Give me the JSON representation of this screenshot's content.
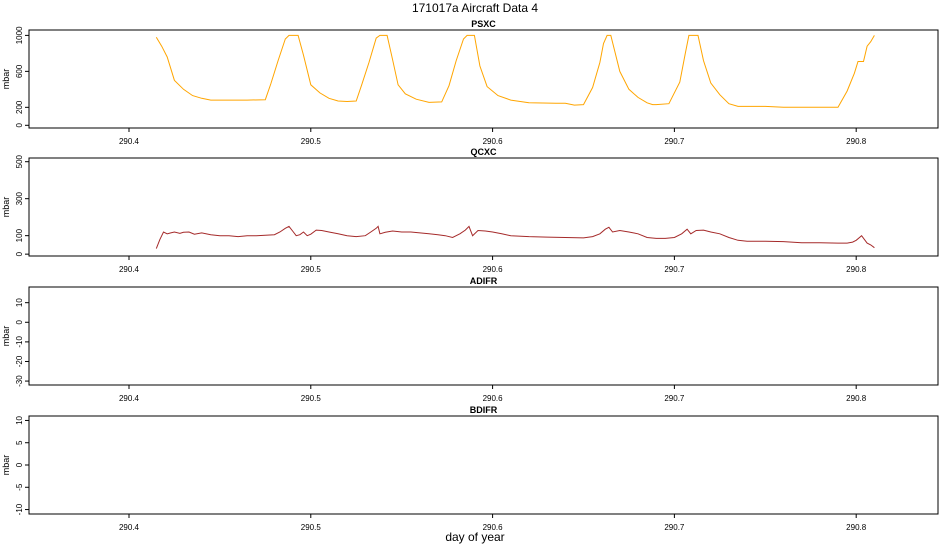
{
  "figure": {
    "title": "171017a   Aircraft Data 4",
    "xlabel": "day of year"
  },
  "chart_data": [
    {
      "type": "line",
      "title": "PSXC",
      "ylabel": "mbar",
      "xlim": [
        290.345,
        290.845
      ],
      "ylim": [
        -30,
        1060
      ],
      "xticks": [
        290.4,
        290.5,
        290.6,
        290.7,
        290.8
      ],
      "xtick_labels": [
        "290.4",
        "290.5",
        "290.6",
        "290.7",
        "290.8"
      ],
      "yticks": [
        0,
        200,
        600,
        1000
      ],
      "ytick_labels": [
        "0",
        "200",
        "600",
        "1000"
      ],
      "color": "#ffa500",
      "series": [
        {
          "x": [
            290.415,
            290.418,
            290.421,
            290.425,
            290.43,
            290.435,
            290.44,
            290.445,
            290.45,
            290.465,
            290.475,
            290.478,
            290.482,
            290.486,
            290.488,
            290.493,
            290.496,
            290.5,
            290.505,
            290.51,
            290.515,
            290.52,
            290.525,
            290.528,
            290.532,
            290.536,
            290.538,
            290.542,
            290.545,
            290.548,
            290.552,
            290.558,
            290.565,
            290.572,
            290.576,
            290.58,
            290.584,
            290.586,
            290.59,
            290.593,
            290.597,
            290.603,
            290.61,
            290.62,
            290.635,
            290.64,
            290.645,
            290.65,
            290.655,
            290.659,
            290.661,
            290.663,
            290.665,
            290.667,
            290.67,
            290.675,
            290.68,
            290.685,
            290.688,
            290.69,
            290.697,
            290.703,
            290.706,
            290.708,
            290.713,
            290.716,
            290.72,
            290.725,
            290.73,
            290.735,
            290.74,
            290.75,
            290.76,
            290.77,
            290.78,
            290.79,
            290.795,
            290.799,
            290.801,
            290.804,
            290.806,
            290.808,
            290.81
          ],
          "y": [
            980,
            880,
            760,
            500,
            400,
            330,
            300,
            280,
            280,
            280,
            285,
            460,
            720,
            960,
            1000,
            1000,
            780,
            450,
            360,
            300,
            270,
            265,
            270,
            450,
            700,
            970,
            1000,
            1000,
            730,
            450,
            350,
            290,
            255,
            260,
            440,
            720,
            960,
            1000,
            1000,
            660,
            430,
            330,
            280,
            250,
            245,
            245,
            225,
            230,
            420,
            700,
            910,
            1000,
            1000,
            840,
            600,
            400,
            310,
            250,
            230,
            230,
            240,
            480,
            800,
            1000,
            1000,
            720,
            470,
            340,
            240,
            210,
            210,
            210,
            200,
            200,
            200,
            200,
            380,
            580,
            710,
            710,
            880,
            930,
            1000
          ]
        }
      ]
    },
    {
      "type": "line",
      "title": "QCXC",
      "ylabel": "mbar",
      "xlim": [
        290.345,
        290.845
      ],
      "ylim": [
        -10,
        520
      ],
      "xticks": [
        290.4,
        290.5,
        290.6,
        290.7,
        290.8
      ],
      "xtick_labels": [
        "290.4",
        "290.5",
        "290.6",
        "290.7",
        "290.8"
      ],
      "yticks": [
        0,
        100,
        300,
        500
      ],
      "ytick_labels": [
        "0",
        "100",
        "300",
        "500"
      ],
      "color": "#a52a2a",
      "series": [
        {
          "x": [
            290.415,
            290.417,
            290.419,
            290.421,
            290.423,
            290.425,
            290.428,
            290.43,
            290.433,
            290.436,
            290.44,
            290.445,
            290.45,
            290.455,
            290.46,
            290.465,
            290.47,
            290.475,
            290.48,
            290.483,
            290.486,
            290.488,
            290.49,
            290.492,
            290.494,
            290.496,
            290.498,
            290.5,
            290.503,
            290.506,
            290.51,
            290.515,
            290.52,
            290.525,
            290.53,
            290.533,
            290.536,
            290.537,
            290.538,
            290.541,
            290.545,
            290.55,
            290.555,
            290.56,
            290.565,
            290.57,
            290.574,
            290.578,
            290.582,
            290.585,
            290.587,
            290.589,
            290.592,
            290.596,
            290.6,
            290.605,
            290.61,
            290.62,
            290.63,
            290.64,
            290.65,
            290.655,
            290.659,
            290.662,
            290.664,
            290.666,
            290.67,
            290.675,
            290.68,
            290.685,
            290.69,
            290.695,
            290.7,
            290.704,
            290.707,
            290.709,
            290.712,
            290.716,
            290.72,
            290.725,
            290.73,
            290.735,
            290.74,
            290.75,
            290.76,
            290.77,
            290.78,
            290.79,
            290.795,
            290.798,
            290.8,
            290.803,
            290.806,
            290.808,
            290.81
          ],
          "y": [
            30,
            80,
            120,
            110,
            115,
            120,
            112,
            118,
            120,
            108,
            115,
            105,
            100,
            100,
            95,
            100,
            100,
            102,
            105,
            120,
            140,
            150,
            125,
            100,
            105,
            120,
            100,
            108,
            130,
            128,
            120,
            110,
            100,
            95,
            100,
            120,
            140,
            150,
            110,
            118,
            125,
            120,
            120,
            115,
            110,
            105,
            100,
            90,
            110,
            130,
            150,
            100,
            128,
            125,
            120,
            110,
            100,
            95,
            92,
            90,
            88,
            95,
            110,
            135,
            145,
            120,
            128,
            120,
            110,
            90,
            85,
            85,
            90,
            110,
            135,
            110,
            128,
            130,
            120,
            110,
            90,
            75,
            70,
            70,
            68,
            62,
            62,
            60,
            60,
            65,
            75,
            100,
            60,
            50,
            35
          ]
        }
      ]
    },
    {
      "type": "line",
      "title": "ADIFR",
      "ylabel": "mbar",
      "xlim": [
        290.345,
        290.845
      ],
      "ylim": [
        -32,
        18
      ],
      "xticks": [
        290.4,
        290.5,
        290.6,
        290.7,
        290.8
      ],
      "xtick_labels": [
        "290.4",
        "290.5",
        "290.6",
        "290.7",
        "290.8"
      ],
      "yticks": [
        -30,
        -20,
        -10,
        0,
        10
      ],
      "ytick_labels": [
        "-30",
        "-20",
        "-10",
        "0",
        "10"
      ],
      "color": "#000000",
      "series": []
    },
    {
      "type": "line",
      "title": "BDIFR",
      "ylabel": "mbar",
      "xlim": [
        290.345,
        290.845
      ],
      "ylim": [
        -11,
        11
      ],
      "xticks": [
        290.4,
        290.5,
        290.6,
        290.7,
        290.8
      ],
      "xtick_labels": [
        "290.4",
        "290.5",
        "290.6",
        "290.7",
        "290.8"
      ],
      "yticks": [
        -10,
        -5,
        0,
        5,
        10
      ],
      "ytick_labels": [
        "-10",
        "-5",
        "0",
        "5",
        "10"
      ],
      "color": "#000000",
      "series": []
    }
  ]
}
